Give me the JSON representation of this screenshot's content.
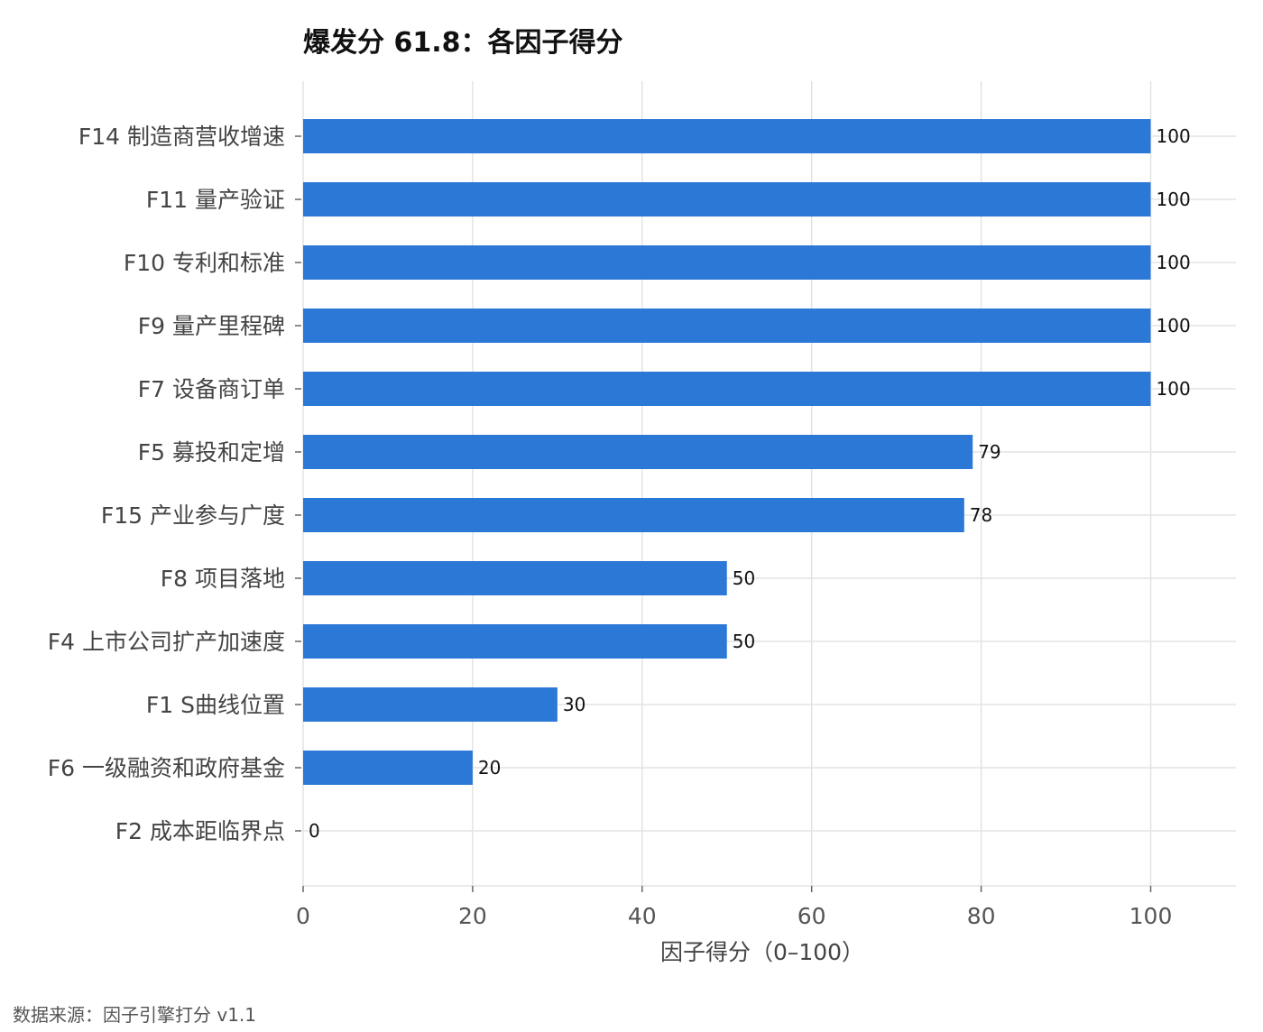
{
  "chart_data": {
    "type": "bar",
    "orientation": "horizontal",
    "title": "爆发分 61.8：各因子得分",
    "xlabel": "因子得分（0–100）",
    "ylabel": "",
    "xlim": [
      0,
      110
    ],
    "xticks": [
      0,
      20,
      40,
      60,
      80,
      100
    ],
    "grid": true,
    "categories": [
      "F14 制造商营收增速",
      "F11 量产验证",
      "F10 专利和标准",
      "F9 量产里程碑",
      "F7 设备商订单",
      "F5 募投和定增",
      "F15 产业参与广度",
      "F8 项目落地",
      "F4 上市公司扩产加速度",
      "F1 S曲线位置",
      "F6 一级融资和政府基金",
      "F2 成本距临界点"
    ],
    "values": [
      100,
      100,
      100,
      100,
      100,
      79,
      78,
      50,
      50,
      30,
      20,
      0
    ],
    "bar_color": "#2b78d6",
    "grid_color": "#e3e3e3",
    "source": "数据来源：因子引擎打分 v1.1"
  }
}
